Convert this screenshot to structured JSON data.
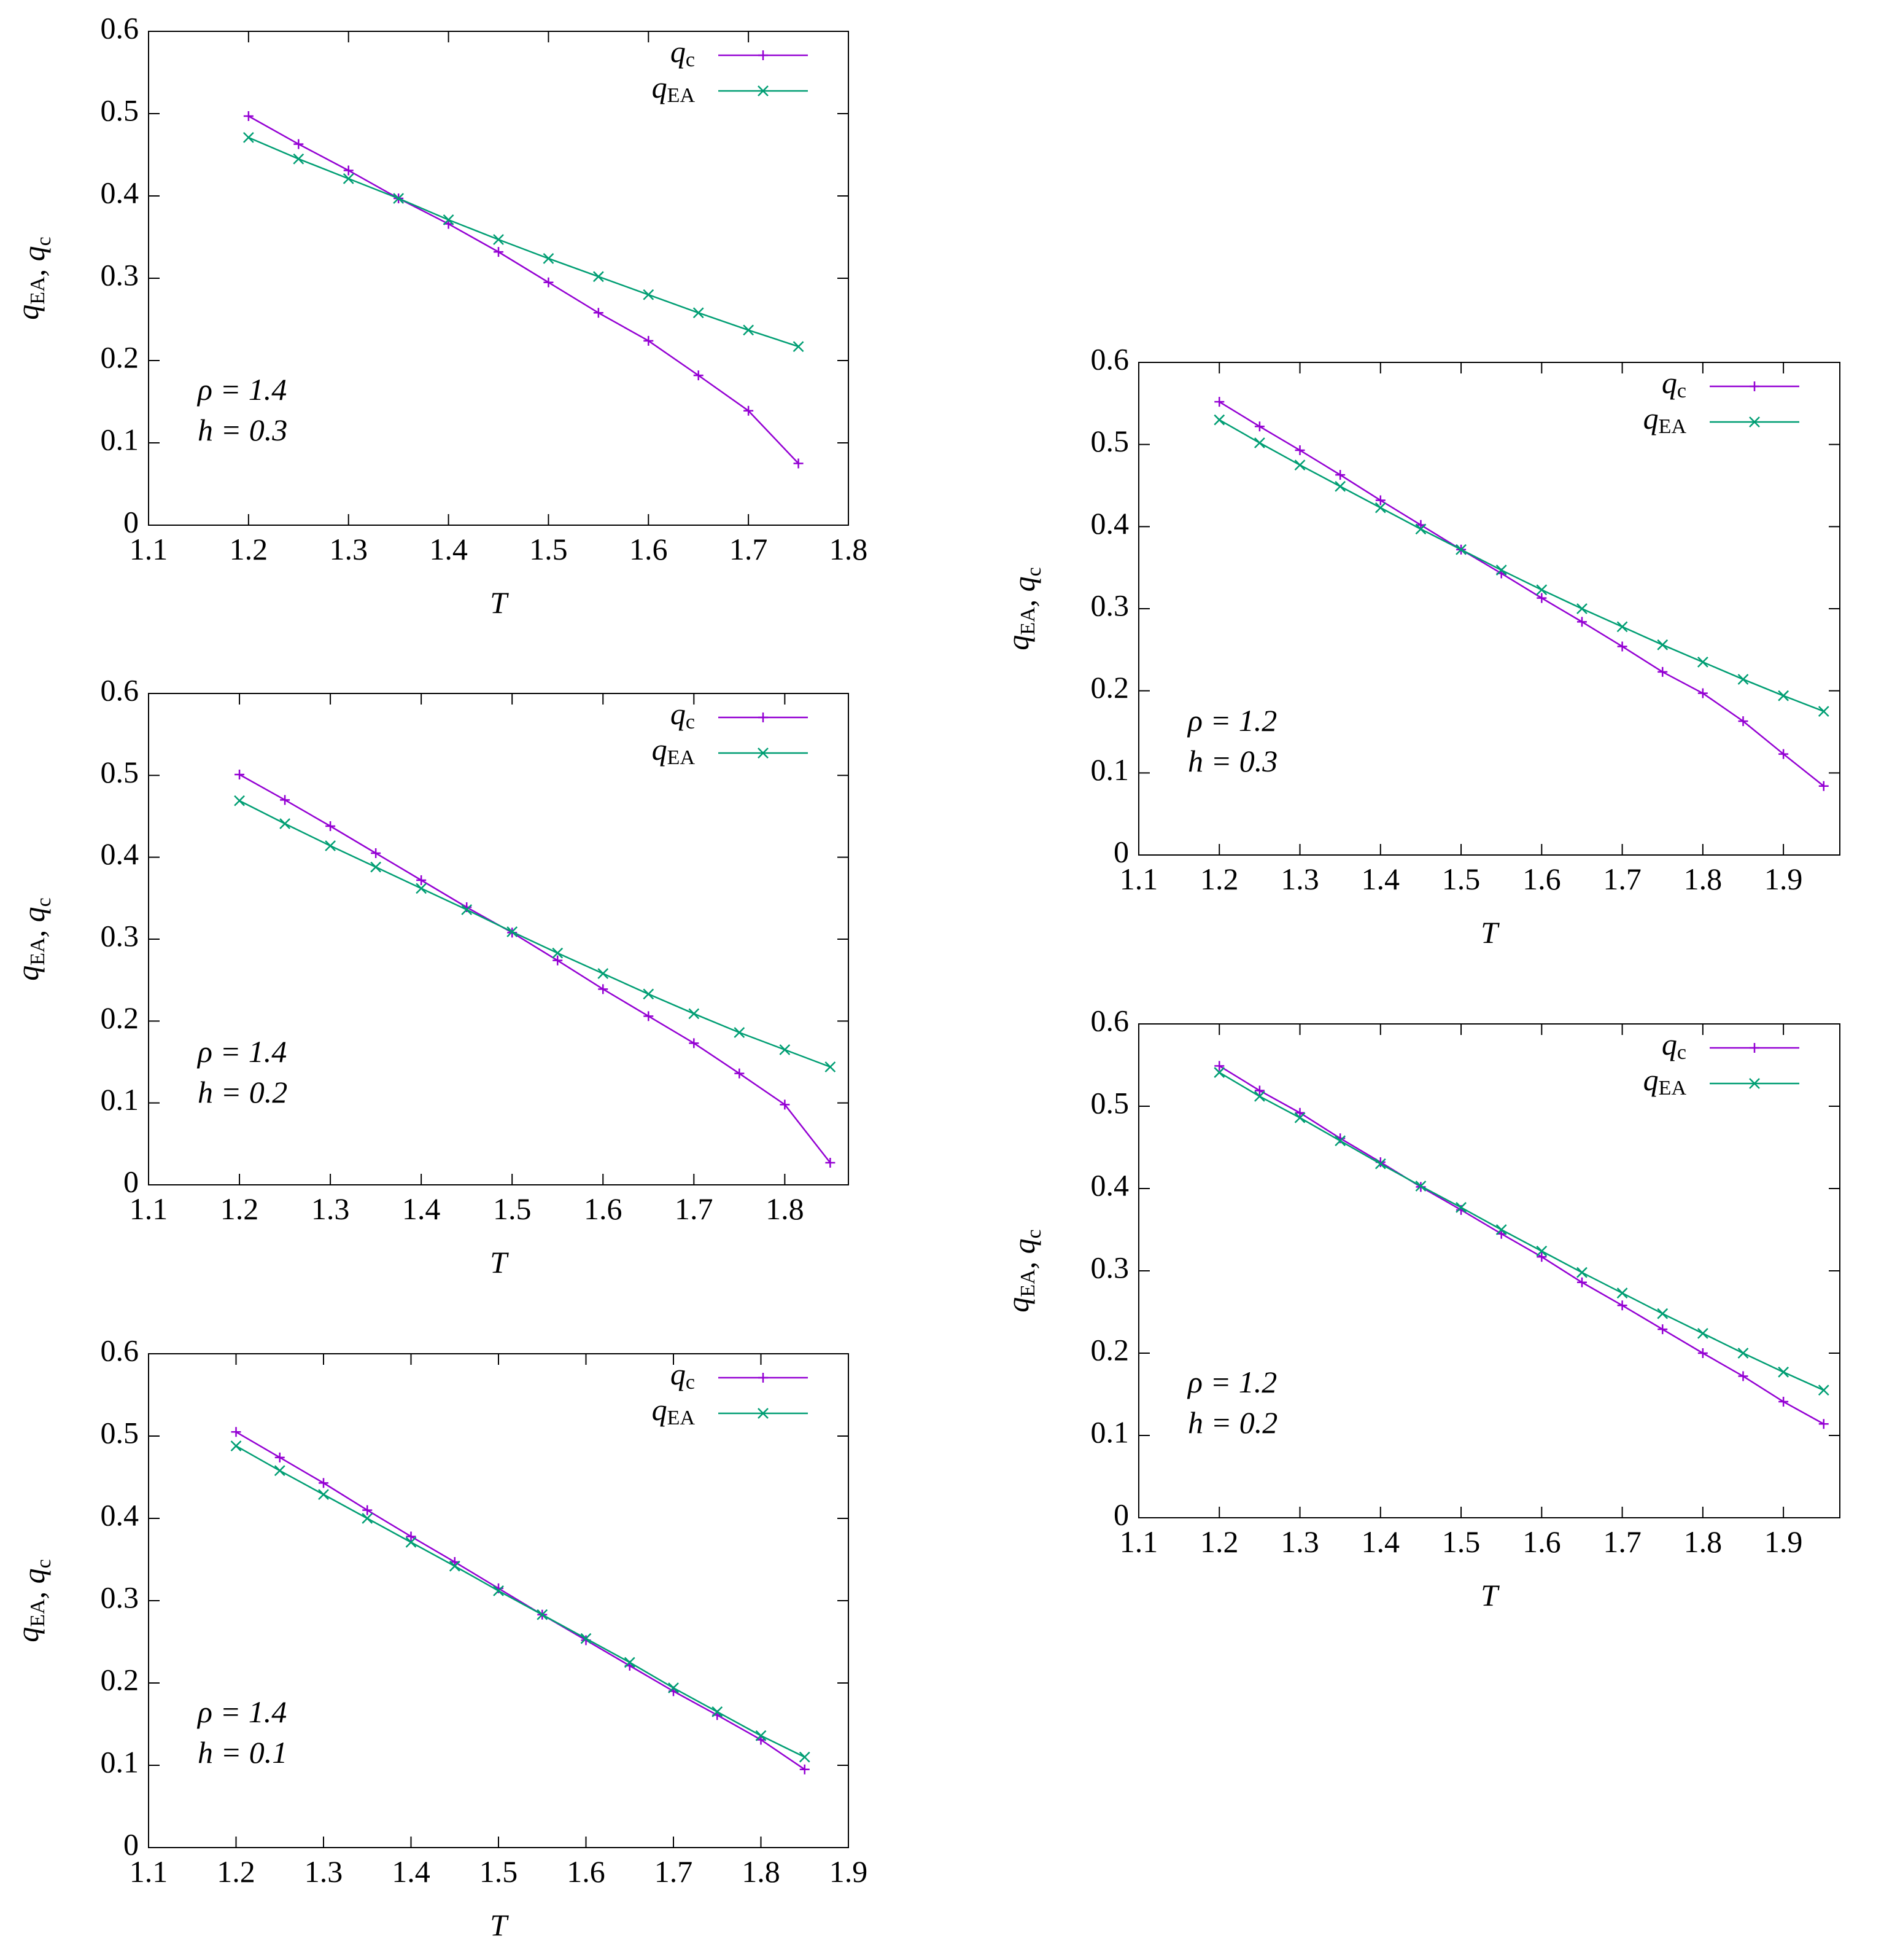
{
  "chart_data": [
    {
      "type": "line",
      "xlabel": "T",
      "ylabel": "q_EA, q_c",
      "annotations": [
        "ρ = 1.4",
        "h = 0.3"
      ],
      "x": [
        1.2,
        1.25,
        1.3,
        1.35,
        1.4,
        1.45,
        1.5,
        1.55,
        1.6,
        1.65,
        1.7,
        1.75
      ],
      "series": [
        {
          "name": "q_c",
          "color": "#9400d3",
          "marker": "+",
          "values": [
            0.497,
            0.463,
            0.431,
            0.397,
            0.366,
            0.332,
            0.295,
            0.258,
            0.224,
            0.182,
            0.139,
            0.075
          ]
        },
        {
          "name": "q_EA",
          "color": "#009e73",
          "marker": "x",
          "values": [
            0.471,
            0.445,
            0.421,
            0.397,
            0.371,
            0.347,
            0.324,
            0.302,
            0.28,
            0.258,
            0.237,
            0.217
          ]
        }
      ],
      "xlim": [
        1.1,
        1.8
      ],
      "ylim": [
        0,
        0.6
      ],
      "xticks": [
        1.1,
        1.2,
        1.3,
        1.4,
        1.5,
        1.6,
        1.7,
        1.8
      ],
      "yticks": [
        0,
        0.1,
        0.2,
        0.3,
        0.4,
        0.5,
        0.6
      ]
    },
    {
      "type": "line",
      "xlabel": "T",
      "ylabel": "q_EA, q_c",
      "annotations": [
        "ρ = 1.4",
        "h = 0.2"
      ],
      "x": [
        1.2,
        1.25,
        1.3,
        1.35,
        1.4,
        1.45,
        1.5,
        1.55,
        1.6,
        1.65,
        1.7,
        1.75,
        1.8,
        1.85
      ],
      "series": [
        {
          "name": "q_c",
          "color": "#9400d3",
          "marker": "+",
          "values": [
            0.501,
            0.47,
            0.438,
            0.405,
            0.372,
            0.339,
            0.308,
            0.274,
            0.239,
            0.206,
            0.173,
            0.136,
            0.098,
            0.027
          ]
        },
        {
          "name": "q_EA",
          "color": "#009e73",
          "marker": "x",
          "values": [
            0.469,
            0.441,
            0.414,
            0.388,
            0.362,
            0.336,
            0.309,
            0.283,
            0.258,
            0.233,
            0.209,
            0.186,
            0.165,
            0.144
          ]
        }
      ],
      "xlim": [
        1.1,
        1.87
      ],
      "ylim": [
        0,
        0.6
      ],
      "xticks": [
        1.1,
        1.2,
        1.3,
        1.4,
        1.5,
        1.6,
        1.7,
        1.8
      ],
      "yticks": [
        0,
        0.1,
        0.2,
        0.3,
        0.4,
        0.5,
        0.6
      ]
    },
    {
      "type": "line",
      "xlabel": "T",
      "ylabel": "q_EA, q_c",
      "annotations": [
        "ρ = 1.4",
        "h = 0.1"
      ],
      "x": [
        1.2,
        1.25,
        1.3,
        1.35,
        1.4,
        1.45,
        1.5,
        1.55,
        1.6,
        1.65,
        1.7,
        1.75,
        1.8,
        1.85
      ],
      "series": [
        {
          "name": "q_c",
          "color": "#9400d3",
          "marker": "+",
          "values": [
            0.505,
            0.474,
            0.443,
            0.41,
            0.378,
            0.347,
            0.315,
            0.283,
            0.252,
            0.221,
            0.19,
            0.161,
            0.131,
            0.095
          ]
        },
        {
          "name": "q_EA",
          "color": "#009e73",
          "marker": "x",
          "values": [
            0.488,
            0.458,
            0.429,
            0.4,
            0.371,
            0.342,
            0.312,
            0.283,
            0.254,
            0.225,
            0.194,
            0.165,
            0.136,
            0.11
          ]
        }
      ],
      "xlim": [
        1.1,
        1.9
      ],
      "ylim": [
        0,
        0.6
      ],
      "xticks": [
        1.1,
        1.2,
        1.3,
        1.4,
        1.5,
        1.6,
        1.7,
        1.8,
        1.9
      ],
      "yticks": [
        0,
        0.1,
        0.2,
        0.3,
        0.4,
        0.5,
        0.6
      ]
    },
    {
      "type": "line",
      "xlabel": "T",
      "ylabel": "q_EA, q_c",
      "annotations": [
        "ρ = 1.2",
        "h = 0.3"
      ],
      "x": [
        1.2,
        1.25,
        1.3,
        1.35,
        1.4,
        1.45,
        1.5,
        1.55,
        1.6,
        1.65,
        1.7,
        1.75,
        1.8,
        1.85,
        1.9,
        1.95
      ],
      "series": [
        {
          "name": "q_c",
          "color": "#9400d3",
          "marker": "+",
          "values": [
            0.552,
            0.522,
            0.493,
            0.463,
            0.432,
            0.402,
            0.372,
            0.343,
            0.313,
            0.284,
            0.254,
            0.223,
            0.197,
            0.163,
            0.123,
            0.084
          ]
        },
        {
          "name": "q_EA",
          "color": "#009e73",
          "marker": "x",
          "values": [
            0.53,
            0.502,
            0.475,
            0.449,
            0.423,
            0.397,
            0.372,
            0.347,
            0.323,
            0.3,
            0.278,
            0.256,
            0.235,
            0.214,
            0.194,
            0.175
          ]
        }
      ],
      "xlim": [
        1.1,
        1.97
      ],
      "ylim": [
        0,
        0.6
      ],
      "xticks": [
        1.1,
        1.2,
        1.3,
        1.4,
        1.5,
        1.6,
        1.7,
        1.8,
        1.9
      ],
      "yticks": [
        0,
        0.1,
        0.2,
        0.3,
        0.4,
        0.5,
        0.6
      ]
    },
    {
      "type": "line",
      "xlabel": "T",
      "ylabel": "q_EA, q_c",
      "annotations": [
        "ρ = 1.2",
        "h = 0.2"
      ],
      "x": [
        1.2,
        1.25,
        1.3,
        1.35,
        1.4,
        1.45,
        1.5,
        1.55,
        1.6,
        1.65,
        1.7,
        1.75,
        1.8,
        1.85,
        1.9,
        1.95
      ],
      "series": [
        {
          "name": "q_c",
          "color": "#9400d3",
          "marker": "+",
          "values": [
            0.549,
            0.519,
            0.492,
            0.461,
            0.432,
            0.402,
            0.374,
            0.345,
            0.317,
            0.286,
            0.258,
            0.229,
            0.2,
            0.172,
            0.141,
            0.114
          ]
        },
        {
          "name": "q_EA",
          "color": "#009e73",
          "marker": "x",
          "values": [
            0.541,
            0.512,
            0.486,
            0.458,
            0.43,
            0.403,
            0.377,
            0.35,
            0.324,
            0.298,
            0.273,
            0.248,
            0.224,
            0.2,
            0.177,
            0.155
          ]
        }
      ],
      "xlim": [
        1.1,
        1.97
      ],
      "ylim": [
        0,
        0.6
      ],
      "xticks": [
        1.1,
        1.2,
        1.3,
        1.4,
        1.5,
        1.6,
        1.7,
        1.8,
        1.9
      ],
      "yticks": [
        0,
        0.1,
        0.2,
        0.3,
        0.4,
        0.5,
        0.6
      ]
    }
  ]
}
